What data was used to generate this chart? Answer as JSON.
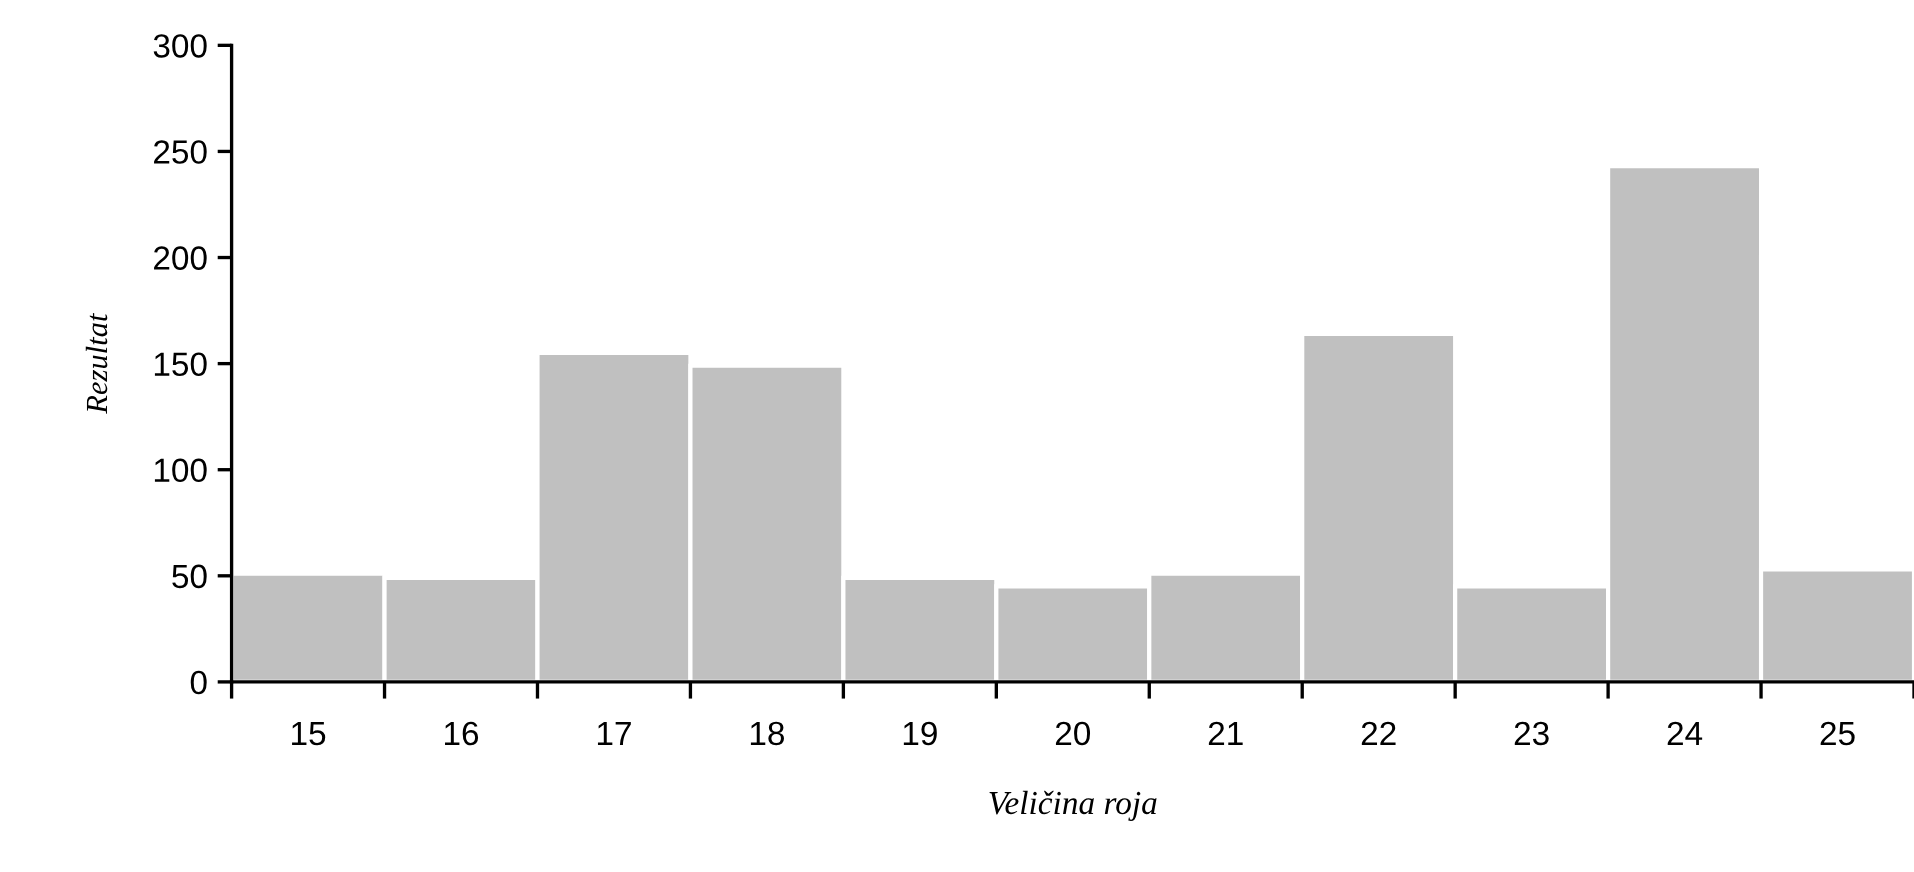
{
  "chart_data": {
    "type": "bar",
    "xlabel": "Veličina roja",
    "ylabel": "Rezultat",
    "categories": [
      "15",
      "16",
      "17",
      "18",
      "19",
      "20",
      "21",
      "22",
      "23",
      "24",
      "25"
    ],
    "values": [
      51,
      49,
      155,
      149,
      49,
      45,
      51,
      164,
      45,
      243,
      53
    ],
    "color": "#c0c0c0",
    "ylim": [
      0,
      300
    ],
    "yticks": [
      0,
      50,
      100,
      150,
      200,
      250,
      300
    ],
    "grid": false
  }
}
